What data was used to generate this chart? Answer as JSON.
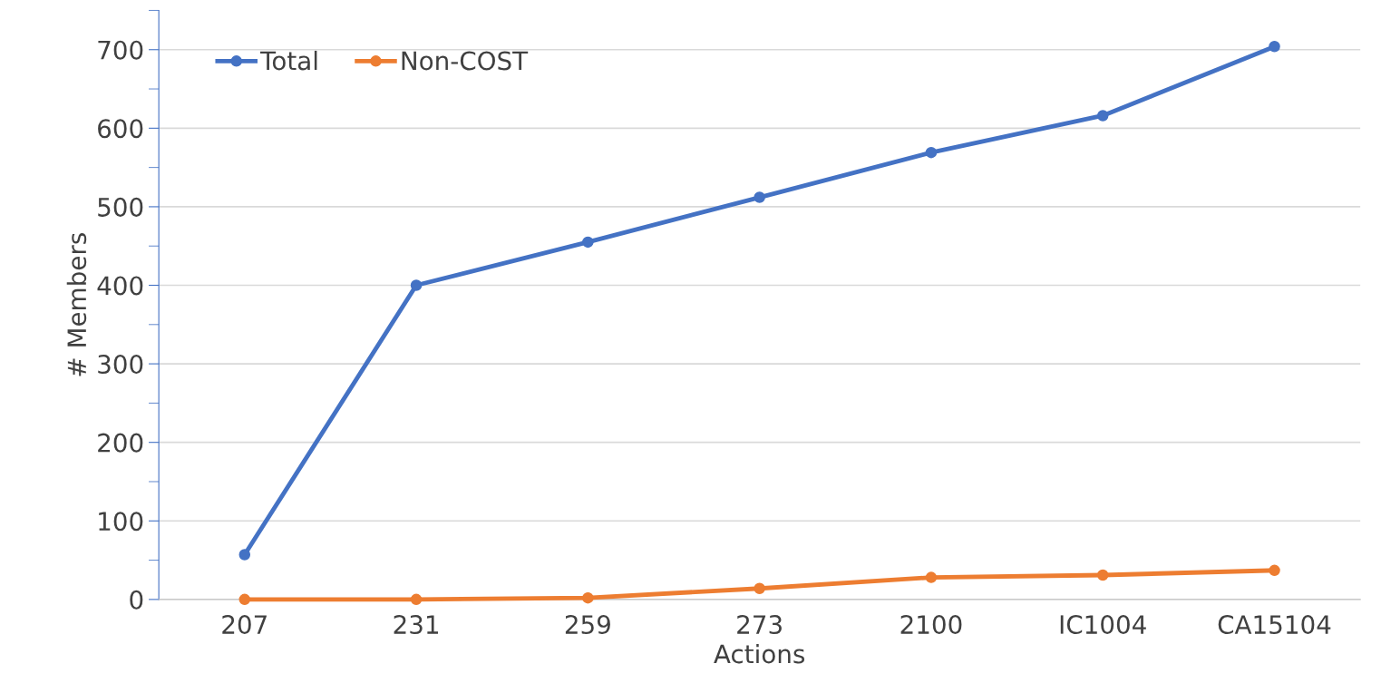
{
  "chart_data": {
    "type": "line",
    "xlabel": "Actions",
    "ylabel": "# Members",
    "categories": [
      "207",
      "231",
      "259",
      "273",
      "2100",
      "IC1004",
      "CA15104"
    ],
    "series": [
      {
        "name": "Total",
        "color": "#4472c4",
        "values": [
          57,
          400,
          455,
          512,
          569,
          616,
          704
        ]
      },
      {
        "name": "Non-COST",
        "color": "#ed7d31",
        "values": [
          0,
          0,
          2,
          14,
          28,
          31,
          37
        ]
      }
    ],
    "ylim": [
      0,
      750
    ],
    "yticks": [
      0,
      {
        "value": 50,
        "label": null
      },
      100,
      {
        "value": 150,
        "label": null
      },
      200,
      {
        "value": 250,
        "label": null
      },
      300,
      {
        "value": 350,
        "label": null
      },
      400,
      {
        "value": 450,
        "label": null
      },
      500,
      {
        "value": 550,
        "label": null
      },
      600,
      {
        "value": 650,
        "label": null
      },
      700,
      {
        "value": 750,
        "label": null
      }
    ],
    "grid": "y",
    "legend": "top left",
    "marker": "circle",
    "line_style": "solid"
  }
}
